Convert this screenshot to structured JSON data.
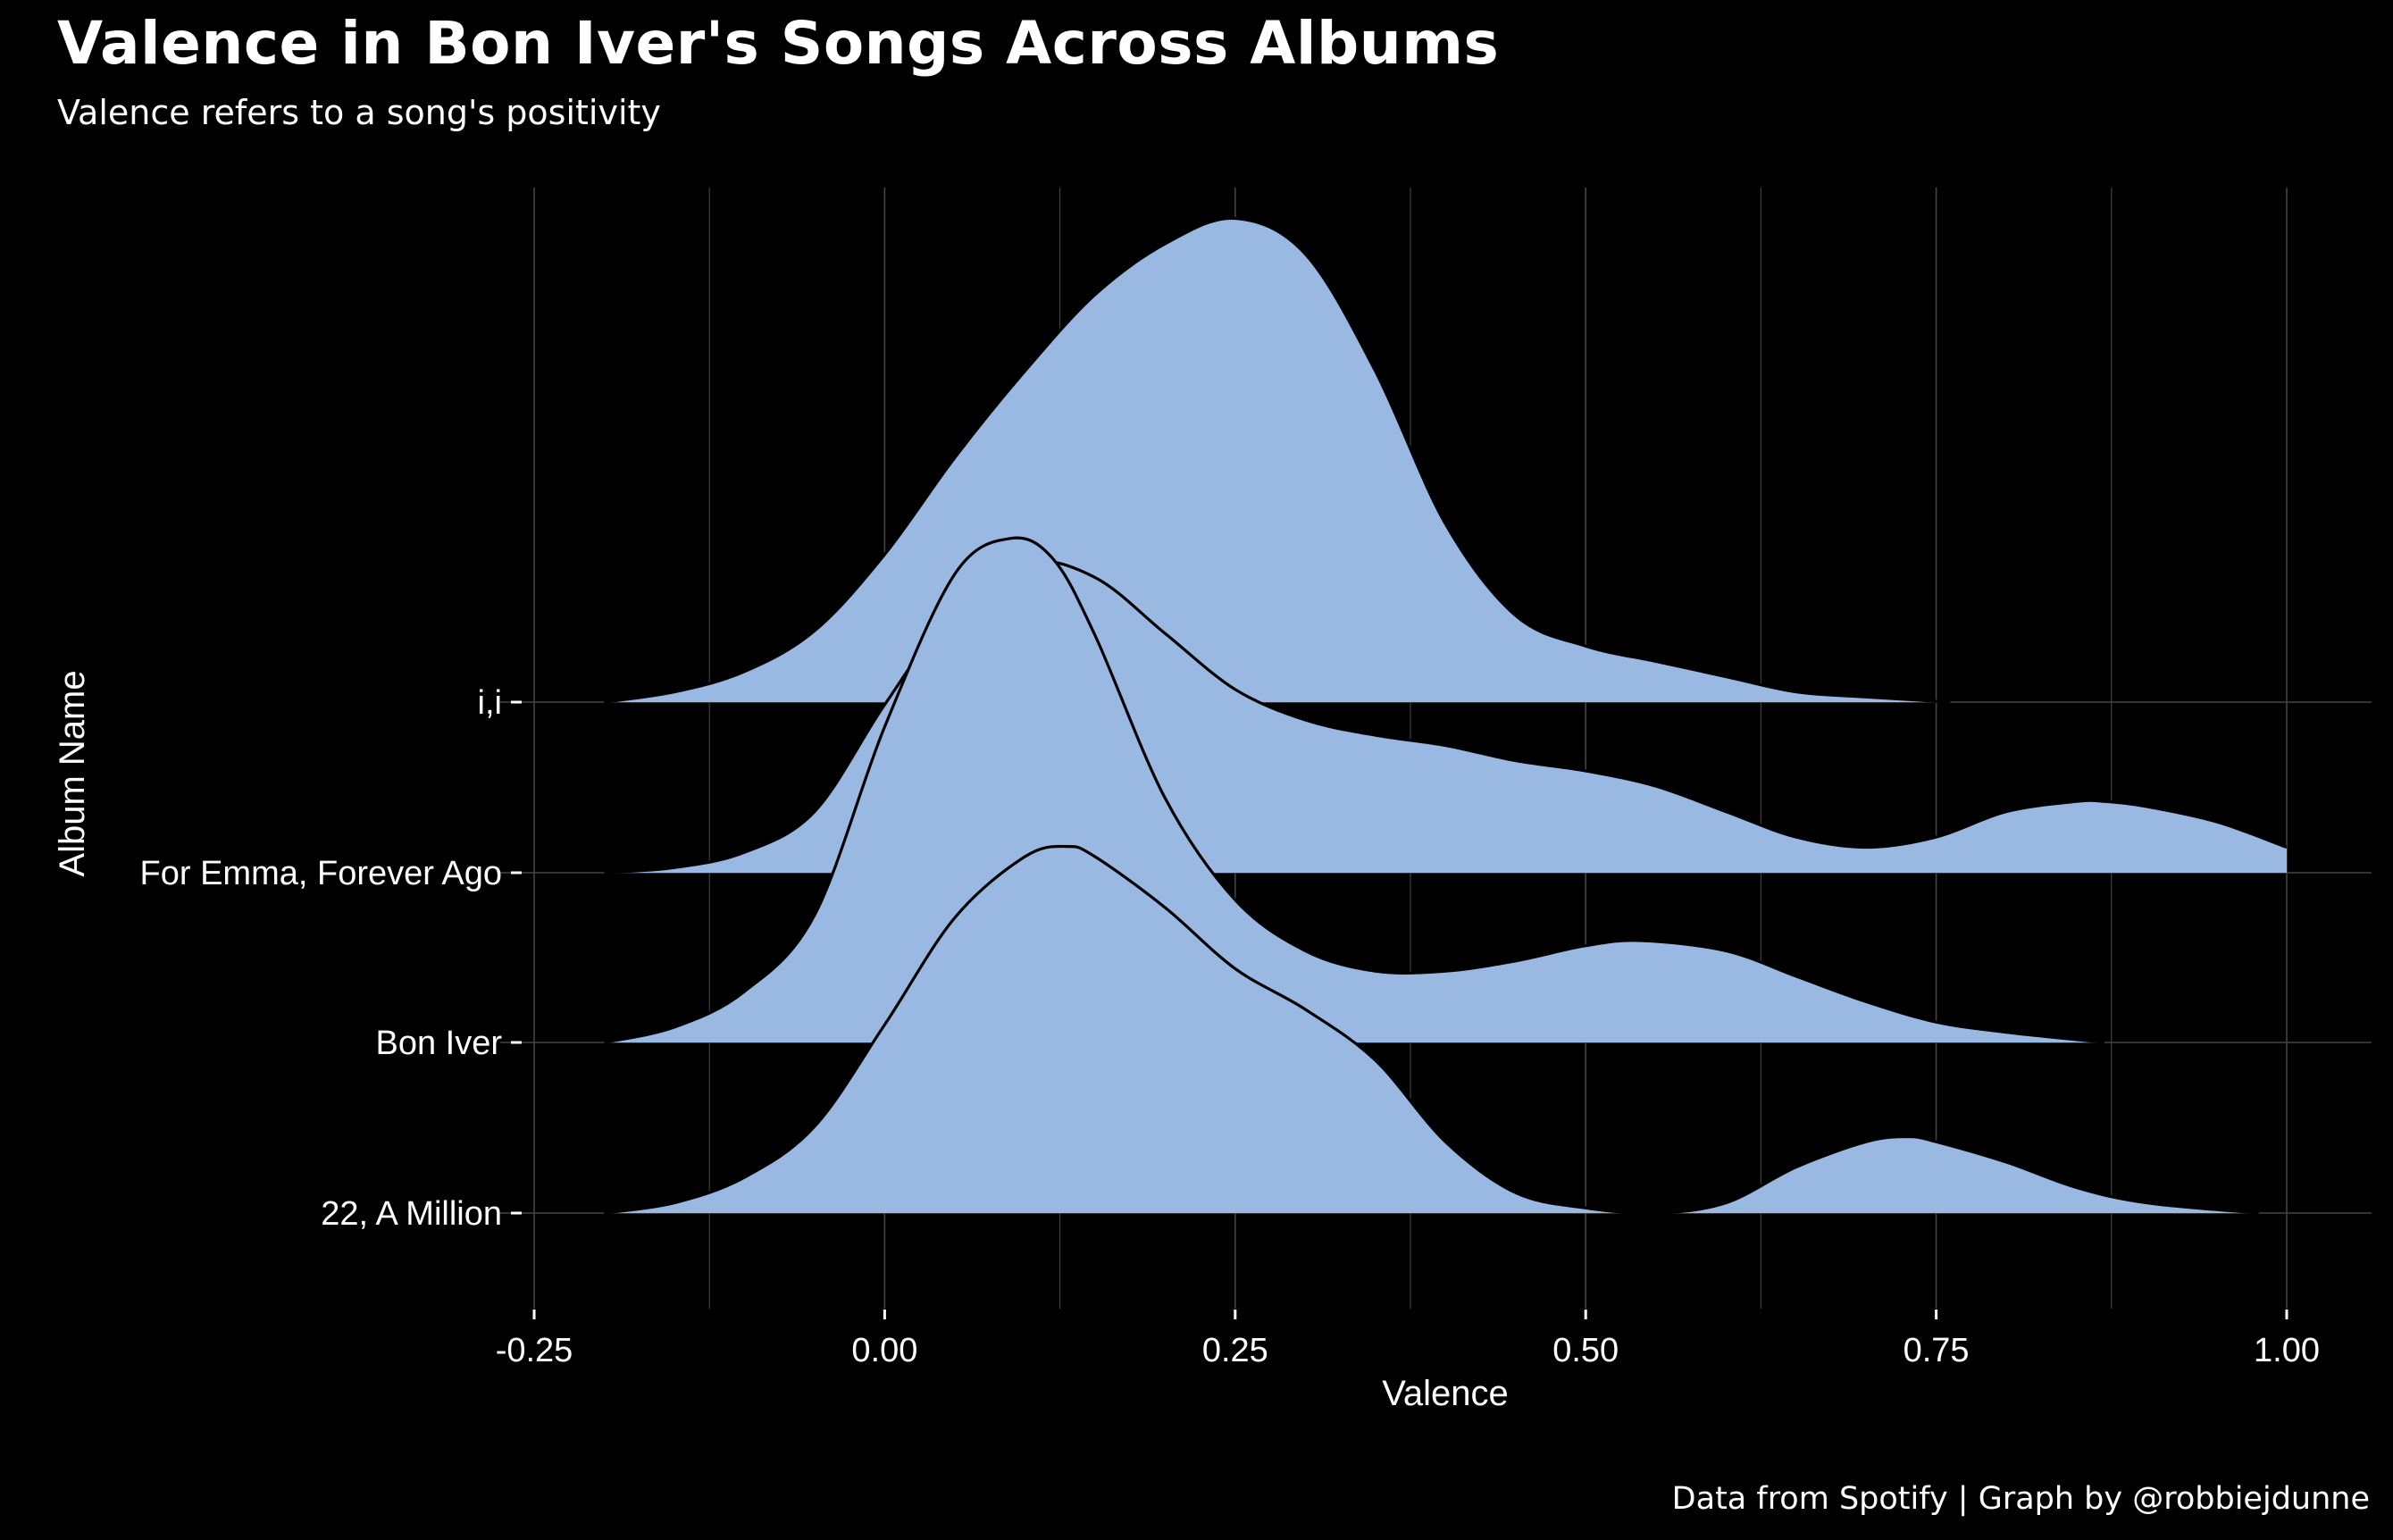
{
  "title": "Valence in Bon Iver's Songs Across Albums",
  "subtitle": "Valence refers to a song's positivity",
  "caption": "Data from Spotify | Graph by @robbiejdunne",
  "colors": {
    "background": "#000000",
    "fill": "#99b9e2",
    "outline": "#000000",
    "grid": "#444444",
    "text": "#ffffff"
  },
  "chart_data": {
    "type": "area",
    "subtype": "ridgeline-density",
    "xlabel": "Valence",
    "ylabel": "Album Name",
    "xlim": [
      -0.25,
      1.0
    ],
    "x_ticks": [
      "-0.25",
      "0.00",
      "0.25",
      "0.50",
      "0.75",
      "1.00"
    ],
    "x_tick_values": [
      -0.25,
      0.0,
      0.25,
      0.5,
      0.75,
      1.0
    ],
    "grid": true,
    "categories": [
      "22, A Million",
      "Bon Iver",
      "For Emma, Forever Ago",
      "i,i"
    ],
    "series": [
      {
        "name": "22, A Million",
        "range": [
          -0.2,
          0.98
        ],
        "points": [
          [
            -0.2,
            0
          ],
          [
            -0.15,
            0.02
          ],
          [
            -0.1,
            0.07
          ],
          [
            -0.05,
            0.17
          ],
          [
            0.0,
            0.37
          ],
          [
            0.05,
            0.58
          ],
          [
            0.1,
            0.7
          ],
          [
            0.13,
            0.72
          ],
          [
            0.15,
            0.7
          ],
          [
            0.2,
            0.6
          ],
          [
            0.25,
            0.48
          ],
          [
            0.3,
            0.4
          ],
          [
            0.35,
            0.3
          ],
          [
            0.4,
            0.14
          ],
          [
            0.45,
            0.04
          ],
          [
            0.5,
            0.01
          ],
          [
            0.55,
            0.0
          ],
          [
            0.6,
            0.02
          ],
          [
            0.65,
            0.09
          ],
          [
            0.7,
            0.14
          ],
          [
            0.73,
            0.15
          ],
          [
            0.75,
            0.14
          ],
          [
            0.8,
            0.1
          ],
          [
            0.85,
            0.05
          ],
          [
            0.9,
            0.02
          ],
          [
            0.98,
            0
          ]
        ]
      },
      {
        "name": "Bon Iver",
        "range": [
          -0.2,
          0.87
        ],
        "points": [
          [
            -0.2,
            0
          ],
          [
            -0.15,
            0.03
          ],
          [
            -0.1,
            0.1
          ],
          [
            -0.05,
            0.25
          ],
          [
            0.0,
            0.62
          ],
          [
            0.05,
            0.92
          ],
          [
            0.09,
            0.99
          ],
          [
            0.12,
            0.95
          ],
          [
            0.15,
            0.8
          ],
          [
            0.2,
            0.48
          ],
          [
            0.25,
            0.28
          ],
          [
            0.3,
            0.18
          ],
          [
            0.35,
            0.14
          ],
          [
            0.4,
            0.14
          ],
          [
            0.45,
            0.16
          ],
          [
            0.5,
            0.19
          ],
          [
            0.54,
            0.2
          ],
          [
            0.6,
            0.18
          ],
          [
            0.65,
            0.13
          ],
          [
            0.7,
            0.08
          ],
          [
            0.75,
            0.04
          ],
          [
            0.8,
            0.02
          ],
          [
            0.87,
            0
          ]
        ]
      },
      {
        "name": "For Emma, Forever Ago",
        "range": [
          -0.2,
          1.0
        ],
        "points": [
          [
            -0.2,
            0
          ],
          [
            -0.15,
            0.01
          ],
          [
            -0.1,
            0.04
          ],
          [
            -0.05,
            0.12
          ],
          [
            0.0,
            0.33
          ],
          [
            0.05,
            0.52
          ],
          [
            0.1,
            0.61
          ],
          [
            0.15,
            0.58
          ],
          [
            0.2,
            0.47
          ],
          [
            0.25,
            0.36
          ],
          [
            0.3,
            0.3
          ],
          [
            0.35,
            0.27
          ],
          [
            0.4,
            0.25
          ],
          [
            0.45,
            0.22
          ],
          [
            0.5,
            0.2
          ],
          [
            0.55,
            0.17
          ],
          [
            0.6,
            0.12
          ],
          [
            0.65,
            0.07
          ],
          [
            0.7,
            0.05
          ],
          [
            0.75,
            0.07
          ],
          [
            0.8,
            0.12
          ],
          [
            0.85,
            0.14
          ],
          [
            0.87,
            0.14
          ],
          [
            0.9,
            0.13
          ],
          [
            0.95,
            0.1
          ],
          [
            1.0,
            0.05
          ]
        ]
      },
      {
        "name": "i,i",
        "range": [
          -0.2,
          0.76
        ],
        "points": [
          [
            -0.2,
            0
          ],
          [
            -0.15,
            0.02
          ],
          [
            -0.1,
            0.06
          ],
          [
            -0.05,
            0.14
          ],
          [
            0.0,
            0.29
          ],
          [
            0.05,
            0.48
          ],
          [
            0.1,
            0.65
          ],
          [
            0.15,
            0.8
          ],
          [
            0.2,
            0.9
          ],
          [
            0.25,
            0.95
          ],
          [
            0.3,
            0.88
          ],
          [
            0.35,
            0.65
          ],
          [
            0.4,
            0.35
          ],
          [
            0.45,
            0.17
          ],
          [
            0.5,
            0.11
          ],
          [
            0.55,
            0.08
          ],
          [
            0.6,
            0.05
          ],
          [
            0.65,
            0.02
          ],
          [
            0.7,
            0.01
          ],
          [
            0.76,
            0
          ]
        ]
      }
    ]
  }
}
